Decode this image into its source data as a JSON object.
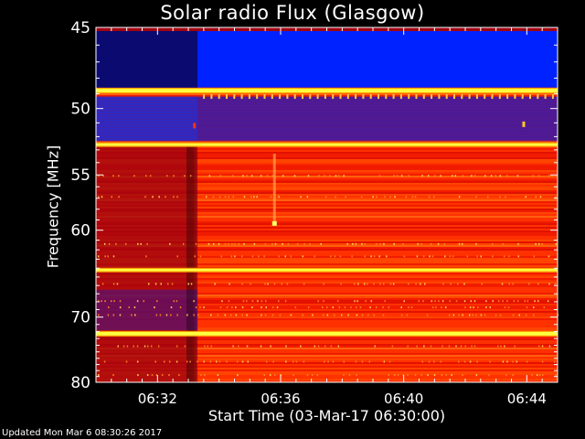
{
  "chart_data": {
    "type": "heatmap",
    "title": "Solar radio Flux (Glasgow)",
    "xlabel": "Start Time (03-Mar-17 06:30:00)",
    "ylabel": "Frequency [MHz]",
    "x_ticks": [
      "06:32",
      "06:36",
      "06:40",
      "06:44"
    ],
    "x_tick_minutes": [
      2,
      6,
      10,
      14
    ],
    "x_range_minutes": [
      0,
      15
    ],
    "y_ticks": [
      45,
      50,
      55,
      60,
      70,
      80
    ],
    "y_range_mhz": [
      45,
      80
    ],
    "y_scale": "reciprocal",
    "colormap": [
      "#0000ff",
      "#ff0000",
      "#ffff00"
    ],
    "feature_minutes": {
      "background_step": 3.3,
      "spike": 5.8
    },
    "spike_frequency_mhz": 59.3,
    "bright_band_mhz": [
      48.8,
      52.6,
      64.2,
      72.3
    ],
    "blue_band_mhz": [
      45.2,
      48.6
    ],
    "purple_band_mhz": [
      49.2,
      52.3
    ]
  },
  "footer": {
    "updated": "Updated Mon Mar  6 08:30:26 2017"
  }
}
